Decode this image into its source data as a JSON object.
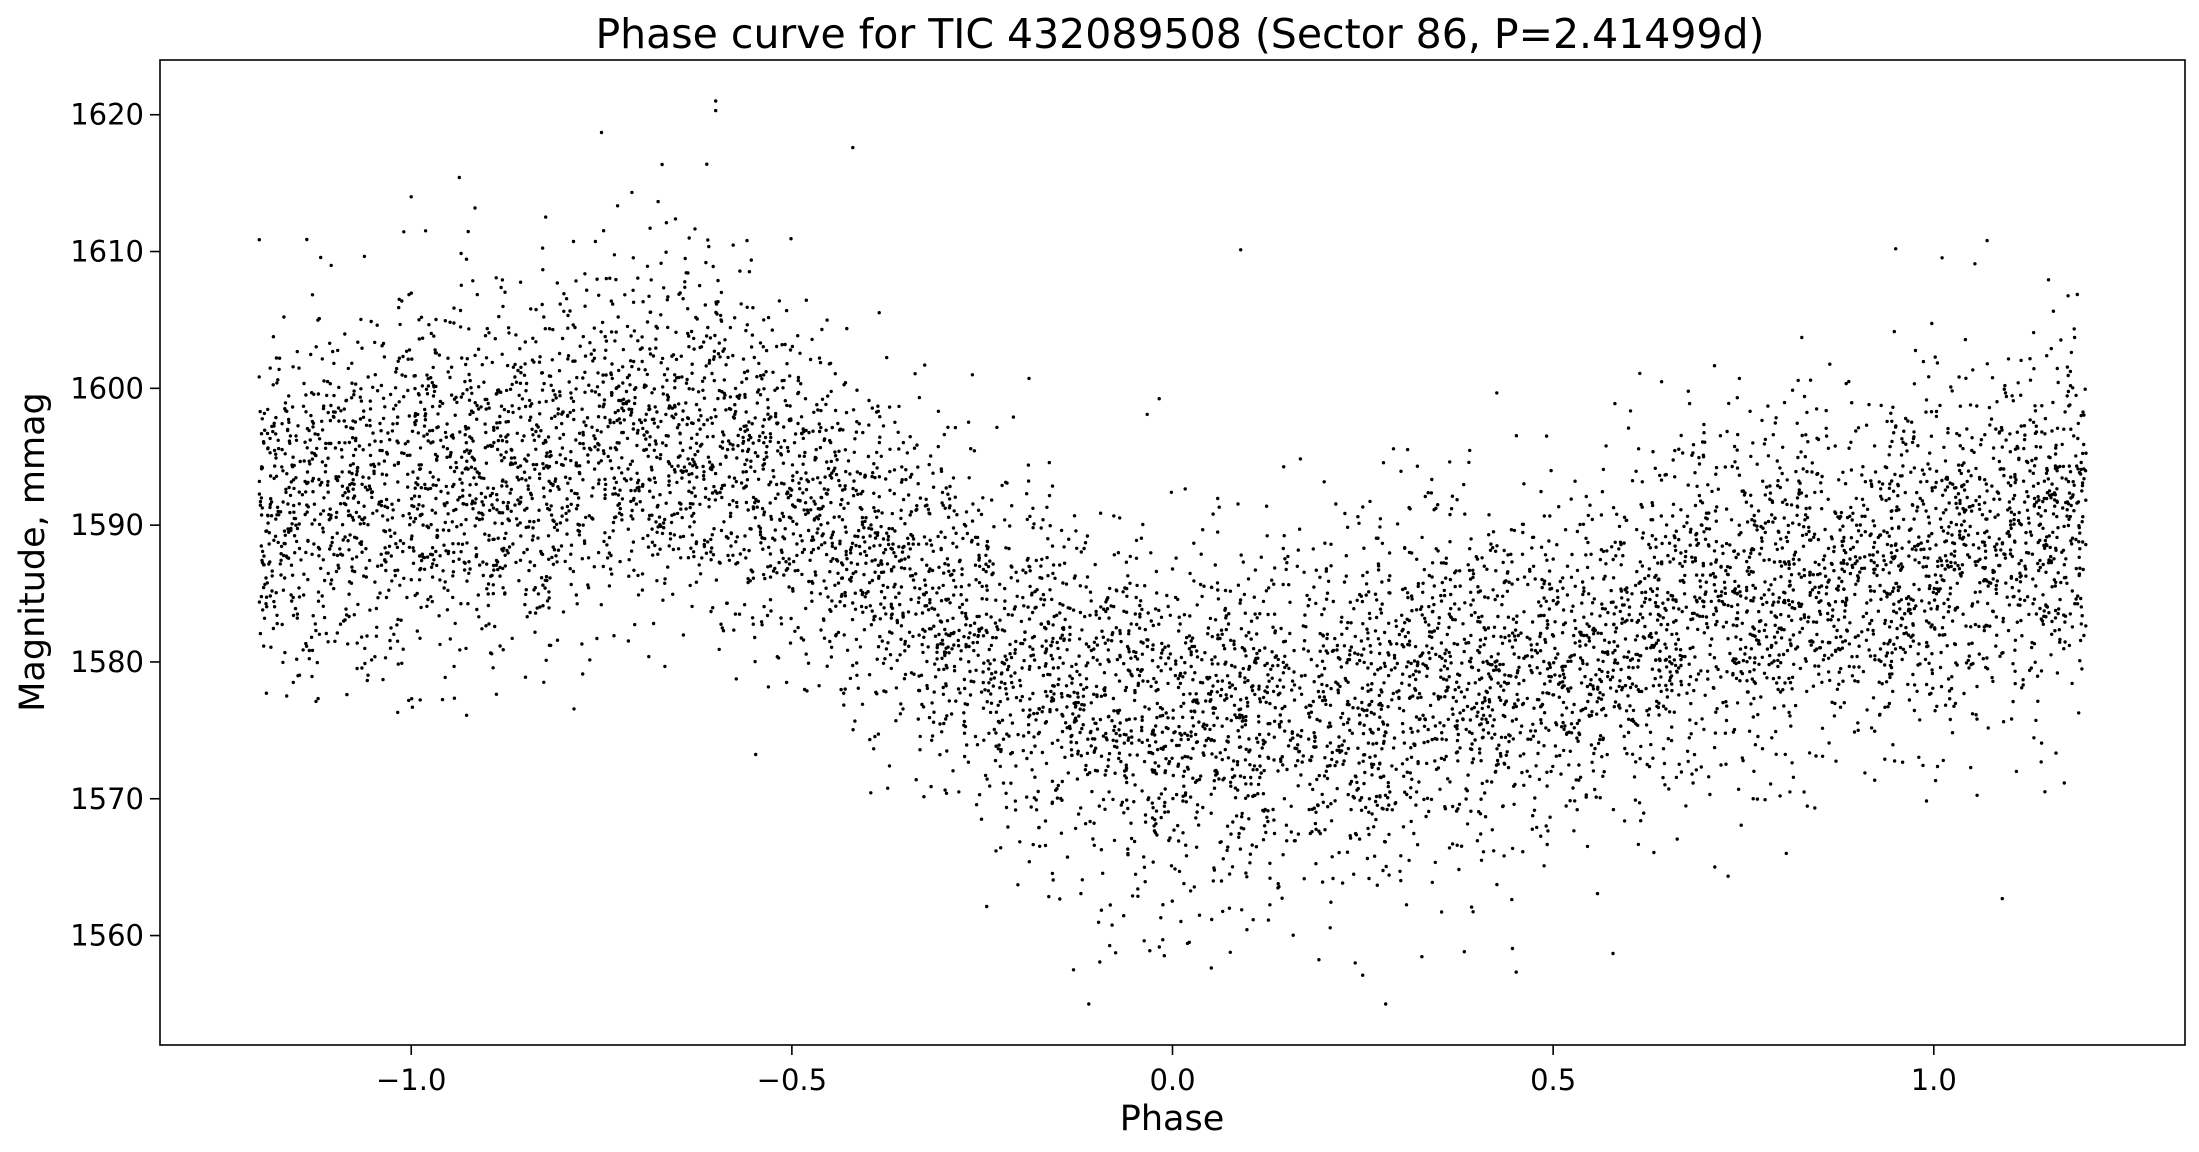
{
  "chart_data": {
    "type": "scatter",
    "title": "Phase curve for TIC 432089508 (Sector 86, P=2.41499d)",
    "xlabel": "Phase",
    "ylabel": "Magnitude, mmag",
    "xlim": [
      -1.33,
      1.33
    ],
    "ylim": [
      1552,
      1624
    ],
    "xticks": [
      -1.0,
      -0.5,
      0.0,
      0.5,
      1.0
    ],
    "xtick_labels": [
      "−1.0",
      "−0.5",
      "0.0",
      "0.5",
      "1.0"
    ],
    "yticks": [
      1560,
      1570,
      1580,
      1590,
      1600,
      1610,
      1620
    ],
    "ytick_labels": [
      "1560",
      "1570",
      "1580",
      "1590",
      "1600",
      "1610",
      "1620"
    ],
    "x_range_of_points": [
      -1.2,
      1.2
    ],
    "point_count": 8000,
    "point_color": "#000000",
    "grid": false,
    "curve": {
      "period_days": 2.41499,
      "phase": [
        -1.2,
        -1.0,
        -0.8,
        -0.65,
        -0.5,
        -0.4,
        -0.3,
        -0.2,
        -0.1,
        0.0,
        0.1,
        0.2,
        0.3,
        0.4,
        0.5,
        0.6,
        0.7,
        0.8,
        0.9,
        1.0,
        1.1,
        1.2
      ],
      "mean_mmag": [
        1591,
        1593,
        1595,
        1597,
        1593,
        1588,
        1584,
        1580,
        1577,
        1576,
        1576,
        1577,
        1578,
        1579,
        1580,
        1582,
        1584,
        1585,
        1587,
        1588,
        1589,
        1590
      ],
      "scatter_sigma_mmag": 6.5
    },
    "extreme_points": [
      {
        "x": -0.6,
        "y": 1621
      },
      {
        "x": -0.6,
        "y": 1620.3
      },
      {
        "x": -0.75,
        "y": 1618.7
      },
      {
        "x": -0.42,
        "y": 1617.6
      },
      {
        "x": -1.0,
        "y": 1614
      },
      {
        "x": -0.11,
        "y": 1555
      },
      {
        "x": 0.28,
        "y": 1555
      },
      {
        "x": -0.13,
        "y": 1557.5
      },
      {
        "x": 0.24,
        "y": 1558
      },
      {
        "x": 1.07,
        "y": 1610.8
      },
      {
        "x": 1.09,
        "y": 1562.7
      },
      {
        "x": 0.95,
        "y": 1610.2
      }
    ]
  }
}
